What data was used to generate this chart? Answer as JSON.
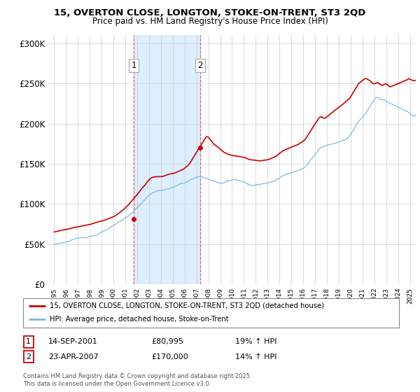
{
  "title_line1": "15, OVERTON CLOSE, LONGTON, STOKE-ON-TRENT, ST3 2QD",
  "title_line2": "Price paid vs. HM Land Registry's House Price Index (HPI)",
  "background_color": "#ffffff",
  "plot_bg_color": "#ffffff",
  "grid_color": "#cccccc",
  "hpi_color": "#7eb6e8",
  "price_color": "#cc0000",
  "shade_color": "#ddeeff",
  "legend_line1": "15, OVERTON CLOSE, LONGTON, STOKE-ON-TRENT, ST3 2QD (detached house)",
  "legend_line2": "HPI: Average price, detached house, Stoke-on-Trent",
  "table_row1": [
    "1",
    "14-SEP-2001",
    "£80,995",
    "19% ↑ HPI"
  ],
  "table_row2": [
    "2",
    "23-APR-2007",
    "£170,000",
    "14% ↑ HPI"
  ],
  "footnote": "Contains HM Land Registry data © Crown copyright and database right 2025.\nThis data is licensed under the Open Government Licence v3.0.",
  "ylim": [
    0,
    310000
  ],
  "yticks": [
    0,
    50000,
    100000,
    150000,
    200000,
    250000,
    300000
  ],
  "ytick_labels": [
    "£0",
    "£50K",
    "£100K",
    "£150K",
    "£200K",
    "£250K",
    "£300K"
  ],
  "purchase1_year": 2001.71,
  "purchase2_year": 2007.32,
  "purchase1_price": 80995,
  "purchase2_price": 170000,
  "hpi_monthly": [
    49000,
    49500,
    50000,
    50200,
    50500,
    50800,
    51200,
    51500,
    51800,
    52000,
    52300,
    52600,
    53000,
    53300,
    53500,
    53800,
    54000,
    54200,
    54500,
    54800,
    55000,
    55300,
    55600,
    55800,
    56000,
    56200,
    56500,
    56700,
    57000,
    57200,
    57500,
    57800,
    58000,
    58300,
    58600,
    58900,
    59200,
    59600,
    60000,
    60400,
    60800,
    61200,
    61600,
    62000,
    62500,
    63000,
    63500,
    64000,
    64500,
    65000,
    65500,
    66000,
    66500,
    67000,
    67600,
    68200,
    68800,
    69400,
    70000,
    70600,
    71200,
    71800,
    72500,
    73200,
    73900,
    74600,
    75300,
    76000,
    76800,
    77600,
    78400,
    79200,
    80000,
    81000,
    82000,
    83000,
    84000,
    85000,
    86200,
    87400,
    88600,
    89800,
    91000,
    92200,
    93500,
    94800,
    96000,
    97200,
    98500,
    99700,
    101000,
    102300,
    103600,
    104900,
    106200,
    107500,
    108500,
    109500,
    110500,
    111500,
    112000,
    112500,
    113000,
    113300,
    113600,
    113800,
    114000,
    114200,
    114500,
    114800,
    115000,
    115200,
    115500,
    115800,
    116000,
    116200,
    116500,
    117000,
    117500,
    118000,
    118500,
    119000,
    119500,
    120000,
    120500,
    121000,
    121500,
    122000,
    122500,
    123000,
    123200,
    123500,
    124000,
    124500,
    125000,
    125500,
    126000,
    126500,
    127000,
    127500,
    128000,
    128500,
    129000,
    129500,
    130000,
    130200,
    130400,
    130100,
    129800,
    129500,
    129200,
    129000,
    128800,
    128500,
    128200,
    128000,
    127500,
    127000,
    126500,
    126000,
    125500,
    125000,
    124500,
    124000,
    123500,
    123000,
    122500,
    122000,
    122000,
    122000,
    122000,
    122500,
    123000,
    123500,
    124000,
    124500,
    125000,
    125200,
    125400,
    125500,
    125600,
    125700,
    125800,
    125900,
    126000,
    125800,
    125600,
    125400,
    125200,
    125000,
    124800,
    124600,
    124000,
    123500,
    123000,
    122500,
    122000,
    121500,
    121000,
    120500,
    120000,
    120000,
    120000,
    120000,
    120200,
    120400,
    120600,
    120800,
    121000,
    121200,
    121400,
    121600,
    121800,
    122000,
    122200,
    122400,
    122600,
    122800,
    123000,
    123500,
    124000,
    124500,
    125000,
    125500,
    126000,
    127000,
    128000,
    129000,
    130000,
    131000,
    132000,
    133000,
    133500,
    134000,
    134500,
    135000,
    135200,
    135400,
    135500,
    135600,
    136000,
    136500,
    137000,
    137500,
    138000,
    138500,
    139000,
    139500,
    140000,
    140500,
    141000,
    141500,
    142000,
    143000,
    144000,
    145000,
    146500,
    148000,
    149500,
    151000,
    152500,
    154000,
    155500,
    157000,
    158500,
    160000,
    161500,
    163000,
    164500,
    165500,
    166500,
    167500,
    168000,
    168500,
    169000,
    169500,
    170000,
    170500,
    171000,
    171500,
    172000,
    172500,
    173000,
    173500,
    174000,
    174500,
    175000,
    175500,
    176000,
    176500,
    177000,
    177500,
    178000,
    178500,
    179000,
    179500,
    180000,
    181000,
    182000,
    183500,
    185000,
    187000,
    189000,
    191000,
    193000,
    195000,
    197000,
    199000,
    200500,
    202000,
    203000,
    204000,
    205000,
    206500,
    208000,
    210000,
    212000,
    214000,
    216000,
    218000,
    220000,
    222000,
    224000,
    226000,
    228000,
    230000,
    231000,
    231500,
    231000,
    230000,
    229000,
    228500,
    228000,
    228500,
    228000,
    227000,
    226000,
    225000,
    224500,
    224000,
    223500,
    223000,
    222500,
    222000,
    221500,
    221000,
    220500,
    220000,
    219000,
    218500,
    218000,
    217500,
    217000,
    216500,
    216000,
    215500,
    215000,
    214500,
    214000,
    213500,
    212000,
    211000,
    210000,
    209500,
    209000,
    209500,
    210000,
    210500,
    211000,
    211500,
    212000,
    212500
  ],
  "price_monthly": [
    65000,
    65300,
    65600,
    65900,
    66200,
    66500,
    66800,
    67100,
    67400,
    67700,
    68000,
    68300,
    68600,
    68900,
    69200,
    69500,
    69800,
    70100,
    70400,
    70700,
    71000,
    71300,
    71600,
    71900,
    72200,
    72400,
    72600,
    72800,
    73000,
    73200,
    73500,
    73800,
    74100,
    74400,
    74700,
    75000,
    75300,
    75600,
    75900,
    76200,
    76600,
    77000,
    77400,
    77800,
    78200,
    78600,
    79000,
    79400,
    79800,
    80200,
    80600,
    81000,
    81500,
    82000,
    82500,
    83000,
    83500,
    84000,
    84500,
    85000,
    85500,
    86000,
    86800,
    87600,
    88400,
    89200,
    90000,
    91000,
    92000,
    93000,
    94000,
    95000,
    96200,
    97400,
    98600,
    99800,
    101000,
    102500,
    104000,
    105500,
    107000,
    108500,
    110000,
    111500,
    113000,
    114500,
    116000,
    117500,
    119000,
    120500,
    122000,
    123500,
    125000,
    126500,
    128000,
    129500,
    131000,
    132000,
    133000,
    133500,
    133800,
    134000,
    134200,
    134300,
    134400,
    134500,
    134600,
    134700,
    135000,
    135300,
    135600,
    135900,
    136200,
    136500,
    136800,
    137100,
    137400,
    137700,
    138000,
    138300,
    138600,
    139000,
    139500,
    140000,
    140500,
    141000,
    141500,
    142000,
    142500,
    143000,
    143500,
    144000,
    145000,
    146000,
    147000,
    148000,
    149500,
    151000,
    153000,
    155000,
    157000,
    159000,
    161000,
    163000,
    165000,
    167000,
    169000,
    171000,
    173000,
    175000,
    177000,
    179000,
    181000,
    183000,
    184500,
    185000,
    184000,
    182500,
    181000,
    179500,
    178000,
    176500,
    175000,
    174000,
    173000,
    172000,
    171000,
    170000,
    169000,
    168000,
    167000,
    166000,
    165000,
    164500,
    164000,
    163500,
    163000,
    162500,
    162000,
    161800,
    161600,
    161400,
    161200,
    161000,
    160800,
    160600,
    160400,
    160200,
    160000,
    159800,
    159600,
    159400,
    159000,
    158500,
    158000,
    157500,
    157000,
    156500,
    156000,
    155800,
    155600,
    155400,
    155200,
    155000,
    154800,
    154600,
    154400,
    154200,
    154000,
    154200,
    154400,
    154600,
    154800,
    155000,
    155200,
    155400,
    155600,
    155800,
    156000,
    156500,
    157000,
    157500,
    158000,
    158500,
    159000,
    160000,
    161000,
    162000,
    163000,
    164000,
    165000,
    166000,
    166500,
    167000,
    167500,
    168000,
    168500,
    169000,
    169500,
    170000,
    170500,
    171000,
    171500,
    172000,
    172500,
    173000,
    173500,
    174000,
    174800,
    175600,
    176400,
    177200,
    178000,
    179000,
    180500,
    182000,
    184000,
    186000,
    188000,
    190000,
    192000,
    194000,
    196000,
    198000,
    200000,
    202000,
    204000,
    206000,
    207500,
    208500,
    209000,
    208500,
    207500,
    207000,
    207500,
    208000,
    209000,
    210000,
    211000,
    212000,
    213000,
    214000,
    215000,
    216000,
    217000,
    218000,
    219000,
    220000,
    221000,
    222000,
    223000,
    224000,
    225000,
    226000,
    227000,
    228000,
    229000,
    230000,
    231000,
    232000,
    234000,
    236000,
    238000,
    240000,
    242000,
    244000,
    246000,
    248000,
    250000,
    251000,
    252000,
    253000,
    254000,
    255000,
    256000,
    256500,
    256000,
    255500,
    255000,
    254500,
    253500,
    252000,
    251000,
    250500,
    250000,
    250500,
    251000,
    251500,
    251000,
    250000,
    249000,
    248500,
    248000,
    248500,
    249000,
    249500,
    249000,
    248500,
    247500,
    246500,
    246000,
    246500,
    247000,
    247500,
    248000,
    248500,
    249000,
    249500,
    250000,
    250500,
    251000,
    251500,
    252000,
    252500,
    253000,
    253500,
    254000,
    254500,
    255000,
    255500,
    255000,
    254500,
    254000,
    253500,
    253000,
    253500,
    254000,
    254500,
    255000,
    255500,
    256000,
    256500
  ]
}
